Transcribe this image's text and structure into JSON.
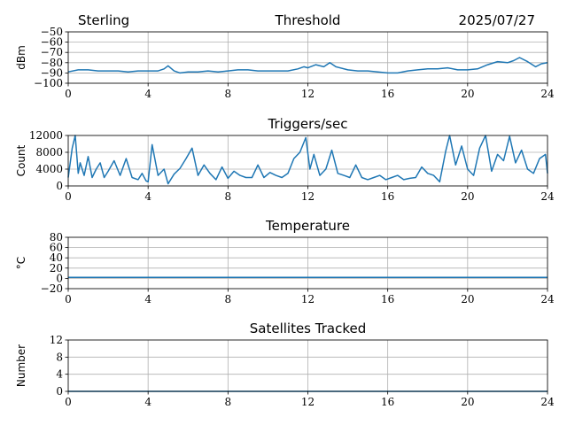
{
  "header": {
    "station": "Sterling",
    "date": "2025/07/27"
  },
  "colors": {
    "series": "#1f77b4",
    "grid": "#b0b0b0",
    "axis": "#000000"
  },
  "chart_data": [
    {
      "type": "line",
      "title": "Threshold",
      "xlabel": "",
      "ylabel": "dBm",
      "xlim": [
        0,
        24
      ],
      "ylim": [
        -100,
        -50
      ],
      "xticks": [
        0,
        4,
        8,
        12,
        16,
        20,
        24
      ],
      "yticks": [
        -100,
        -90,
        -80,
        -70,
        -60,
        -50
      ],
      "yticklabels": [
        "−100",
        "−90",
        "−80",
        "−70",
        "−60",
        "−50"
      ],
      "grid": true,
      "x": [
        0,
        0.5,
        1,
        1.5,
        2,
        2.5,
        3,
        3.5,
        4,
        4.5,
        4.8,
        5,
        5.3,
        5.6,
        6,
        6.5,
        7,
        7.5,
        8,
        8.5,
        9,
        9.5,
        10,
        10.5,
        11,
        11.5,
        11.8,
        12,
        12.4,
        12.8,
        13.1,
        13.4,
        14,
        14.5,
        15,
        15.5,
        16,
        16.5,
        17,
        17.5,
        18,
        18.5,
        19,
        19.5,
        20,
        20.5,
        21,
        21.5,
        22,
        22.3,
        22.6,
        23,
        23.4,
        23.7,
        24
      ],
      "y": [
        -89,
        -87,
        -87,
        -88,
        -88,
        -88,
        -89,
        -88,
        -88,
        -88,
        -86,
        -83,
        -88,
        -90,
        -89,
        -89,
        -88,
        -89,
        -88,
        -87,
        -87,
        -88,
        -88,
        -88,
        -88,
        -86,
        -84,
        -85,
        -82,
        -84,
        -80,
        -84,
        -87,
        -88,
        -88,
        -89,
        -90,
        -90,
        -88,
        -87,
        -86,
        -86,
        -85,
        -87,
        -87,
        -86,
        -82,
        -79,
        -80,
        -78,
        -75,
        -79,
        -84,
        -81,
        -80
      ]
    },
    {
      "type": "line",
      "title": "Triggers/sec",
      "xlabel": "",
      "ylabel": "Count",
      "xlim": [
        0,
        24
      ],
      "ylim": [
        0,
        12000
      ],
      "xticks": [
        0,
        4,
        8,
        12,
        16,
        20,
        24
      ],
      "yticks": [
        0,
        4000,
        8000,
        12000
      ],
      "yticklabels": [
        "0",
        "4000",
        "8000",
        "12000"
      ],
      "grid": true,
      "x": [
        0,
        0.2,
        0.35,
        0.5,
        0.6,
        0.8,
        1.0,
        1.2,
        1.4,
        1.6,
        1.8,
        2.0,
        2.3,
        2.6,
        2.9,
        3.2,
        3.5,
        3.7,
        3.9,
        4.0,
        4.2,
        4.5,
        4.8,
        5.0,
        5.3,
        5.6,
        5.9,
        6.2,
        6.5,
        6.8,
        7.1,
        7.4,
        7.7,
        8.0,
        8.3,
        8.6,
        8.9,
        9.2,
        9.5,
        9.8,
        10.1,
        10.4,
        10.7,
        11.0,
        11.3,
        11.6,
        11.9,
        12.1,
        12.3,
        12.6,
        12.9,
        13.2,
        13.5,
        13.8,
        14.1,
        14.4,
        14.7,
        15.0,
        15.3,
        15.6,
        15.9,
        16.2,
        16.5,
        16.8,
        17.1,
        17.4,
        17.7,
        18.0,
        18.3,
        18.6,
        18.9,
        19.1,
        19.4,
        19.7,
        20.0,
        20.3,
        20.6,
        20.9,
        21.2,
        21.5,
        21.8,
        22.1,
        22.4,
        22.7,
        23.0,
        23.3,
        23.6,
        23.9,
        24
      ],
      "y": [
        2000,
        9000,
        12000,
        3000,
        5500,
        2500,
        7000,
        2000,
        4000,
        5500,
        2000,
        3500,
        6000,
        2500,
        6500,
        2000,
        1500,
        3000,
        1200,
        1000,
        9800,
        2500,
        4000,
        500,
        2800,
        4200,
        6500,
        9000,
        2500,
        5000,
        3000,
        1500,
        4500,
        1800,
        3500,
        2500,
        2000,
        2000,
        5000,
        2000,
        3200,
        2500,
        2000,
        3000,
        6500,
        8000,
        11500,
        4000,
        7500,
        2500,
        4000,
        8500,
        3000,
        2500,
        2000,
        5000,
        2000,
        1500,
        2000,
        2500,
        1500,
        2000,
        2500,
        1500,
        1800,
        2000,
        4500,
        3000,
        2500,
        1000,
        8200,
        12000,
        5000,
        9500,
        4000,
        2500,
        9000,
        12000,
        3500,
        7500,
        6000,
        11800,
        5500,
        8500,
        4000,
        3000,
        6500,
        7500,
        3000
      ]
    },
    {
      "type": "line",
      "title": "Temperature",
      "xlabel": "",
      "ylabel": "°C",
      "xlim": [
        0,
        24
      ],
      "ylim": [
        -20,
        80
      ],
      "xticks": [
        0,
        4,
        8,
        12,
        16,
        20,
        24
      ],
      "yticks": [
        -20,
        0,
        20,
        40,
        60,
        80
      ],
      "yticklabels": [
        "−20",
        "0",
        "20",
        "40",
        "60",
        "80"
      ],
      "grid": true,
      "x": [
        0,
        24
      ],
      "y": [
        2,
        2
      ]
    },
    {
      "type": "line",
      "title": "Satellites Tracked",
      "xlabel": "",
      "ylabel": "Number",
      "xlim": [
        0,
        24
      ],
      "ylim": [
        0,
        12
      ],
      "xticks": [
        0,
        4,
        8,
        12,
        16,
        20,
        24
      ],
      "yticks": [
        0,
        4,
        8,
        12
      ],
      "yticklabels": [
        "0",
        "4",
        "8",
        "12"
      ],
      "grid": true,
      "x": [
        0,
        24
      ],
      "y": [
        0,
        0
      ]
    }
  ]
}
